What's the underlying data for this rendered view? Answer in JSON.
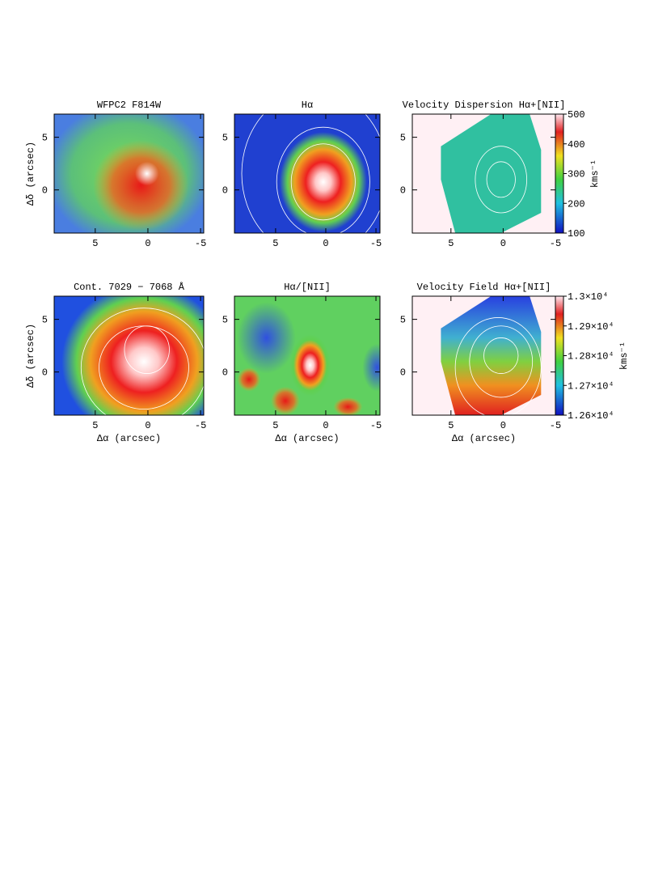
{
  "chart_data": [
    {
      "type": "image",
      "title": "WFPC2 F814W",
      "ylabel": "Δδ (arcsec)",
      "xlim": [
        8.9,
        -5.3
      ],
      "ylim": [
        -4.1,
        7.2
      ],
      "xticks": [
        5,
        0,
        -5
      ],
      "yticks": [
        0,
        5
      ]
    },
    {
      "type": "image",
      "title": "Hα",
      "xlim": [
        9.1,
        -5.4
      ],
      "ylim": [
        -4.1,
        7.2
      ],
      "xticks": [
        5,
        0,
        -5
      ],
      "yticks": [
        0,
        5
      ]
    },
    {
      "type": "image",
      "title": "Velocity Dispersion Hα+[NII]",
      "xlim": [
        8.7,
        -5
      ],
      "ylim": [
        -4.1,
        7.2
      ],
      "xticks": [
        5,
        0,
        -5
      ],
      "yticks": [
        0,
        5
      ],
      "colorbar": {
        "lim": [
          100,
          500
        ],
        "ticks": [
          100,
          200,
          300,
          400,
          500
        ],
        "label": "kms⁻¹"
      }
    },
    {
      "type": "image",
      "title": "Cont. 7029 − 7068 Å",
      "xlabel": "Δα (arcsec)",
      "ylabel": "Δδ (arcsec)",
      "xlim": [
        8.9,
        -5.3
      ],
      "ylim": [
        -4.1,
        7.2
      ],
      "xticks": [
        5,
        0,
        -5
      ],
      "yticks": [
        0,
        5
      ]
    },
    {
      "type": "image",
      "title": "Hα/[NII]",
      "xlabel": "Δα (arcsec)",
      "xlim": [
        9.1,
        -5.4
      ],
      "ylim": [
        -4.1,
        7.2
      ],
      "xticks": [
        5,
        0,
        -5
      ],
      "yticks": [
        0,
        5
      ]
    },
    {
      "type": "image",
      "title": "Velocity Field Hα+[NII]",
      "xlabel": "Δα (arcsec)",
      "xlim": [
        8.7,
        -5
      ],
      "ylim": [
        -4.1,
        7.2
      ],
      "xticks": [
        5,
        0,
        -5
      ],
      "yticks": [
        0,
        5
      ],
      "colorbar": {
        "lim": [
          12600,
          13000
        ],
        "ticks": [
          {
            "value": 12600,
            "label": "1.26×10⁴"
          },
          {
            "value": 12700,
            "label": "1.27×10⁴"
          },
          {
            "value": 12800,
            "label": "1.28×10⁴"
          },
          {
            "value": 12900,
            "label": "1.29×10⁴"
          },
          {
            "value": 13000,
            "label": "1.3×10⁴"
          }
        ],
        "label": "kms⁻¹"
      }
    }
  ]
}
